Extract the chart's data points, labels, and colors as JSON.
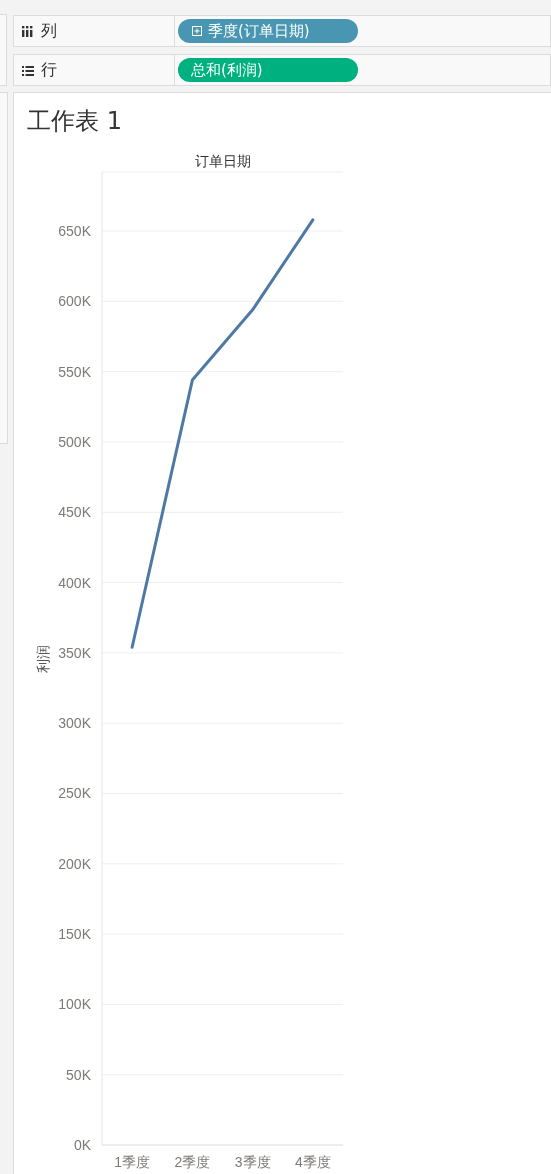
{
  "chart_data": {
    "type": "line",
    "title": "工作表 1",
    "xlabel": "订单日期",
    "ylabel": "利润",
    "categories": [
      "1季度",
      "2季度",
      "3季度",
      "4季度"
    ],
    "series": [
      {
        "color": "#4e79a7",
        "values": [
          354000,
          544000,
          594000,
          658000
        ]
      }
    ],
    "ylim": [
      0,
      692000
    ],
    "yticks": [
      {
        "value": 0,
        "label": "0K"
      },
      {
        "value": 50000,
        "label": "50K"
      },
      {
        "value": 100000,
        "label": "100K"
      },
      {
        "value": 150000,
        "label": "150K"
      },
      {
        "value": 200000,
        "label": "200K"
      },
      {
        "value": 250000,
        "label": "250K"
      },
      {
        "value": 300000,
        "label": "300K"
      },
      {
        "value": 350000,
        "label": "350K"
      },
      {
        "value": 400000,
        "label": "400K"
      },
      {
        "value": 450000,
        "label": "450K"
      },
      {
        "value": 500000,
        "label": "500K"
      },
      {
        "value": 550000,
        "label": "550K"
      },
      {
        "value": 600000,
        "label": "600K"
      },
      {
        "value": 650000,
        "label": "650K"
      }
    ],
    "grid": "y",
    "marker": "none",
    "line_style": "solid",
    "annotations": [
      "列",
      "季度(订单日期)",
      "行",
      "总和(利润)"
    ]
  }
}
